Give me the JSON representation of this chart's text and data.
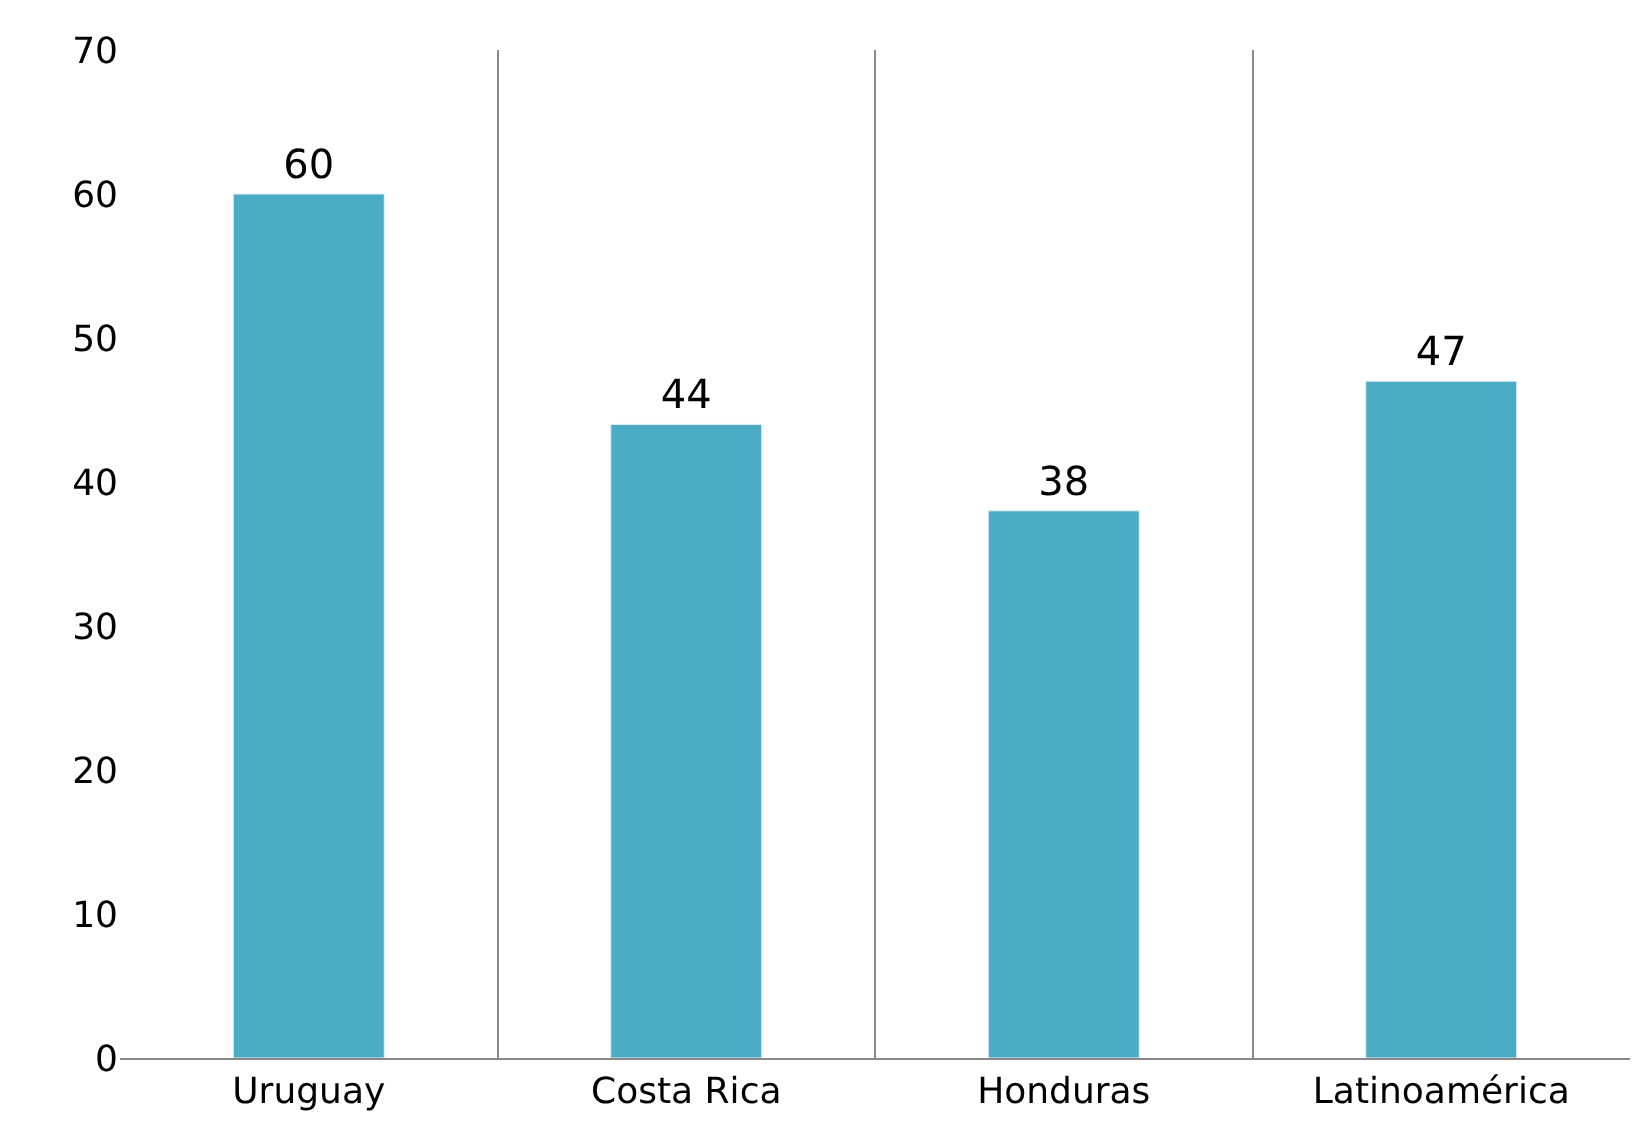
{
  "chart_data": {
    "type": "bar",
    "categories": [
      "Uruguay",
      "Costa Rica",
      "Honduras",
      "Latinoamérica"
    ],
    "values": [
      60,
      44,
      38,
      47
    ],
    "color": "#4bacc6",
    "ylim": [
      0,
      70
    ],
    "yticks": [
      0,
      10,
      20,
      30,
      40,
      50,
      60,
      70
    ],
    "grid": "x",
    "data_labels": true,
    "legend": false
  }
}
